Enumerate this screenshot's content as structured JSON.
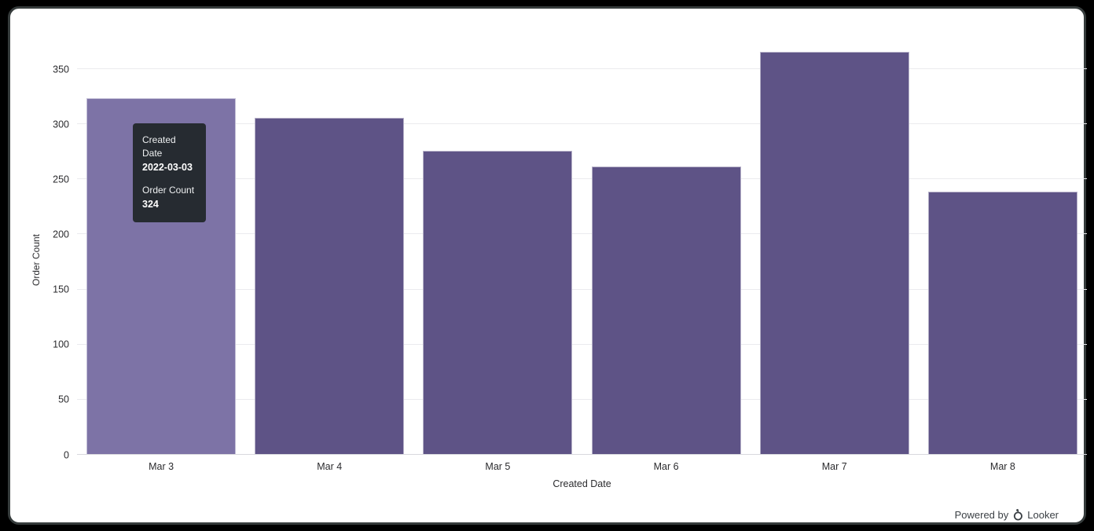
{
  "window": {
    "background": "#000000",
    "card_background": "#ffffff",
    "card_border_color": "#363c3c"
  },
  "chart_data": {
    "type": "bar",
    "title": "",
    "categories": [
      "Mar 3",
      "Mar 4",
      "Mar 5",
      "Mar 6",
      "Mar 7",
      "Mar 8"
    ],
    "values": [
      324,
      306,
      276,
      262,
      366,
      239
    ],
    "xlabel": "Created Date",
    "ylabel": "Order Count",
    "ylim": [
      0,
      390
    ],
    "yticks": [
      0,
      50,
      100,
      150,
      200,
      250,
      300,
      350
    ],
    "grid": true,
    "legend": "none",
    "bar_color": "#5e5386",
    "bar_hover_color": "#7d73a6",
    "hovered_index": 0,
    "gridline_color": "#ebebee",
    "axis_line_color": "#d9d9de"
  },
  "tooltip": {
    "x_label": "Created Date",
    "x_value": "2022-03-03",
    "y_label": "Order Count",
    "y_value": "324",
    "background": "#262b31"
  },
  "footer": {
    "powered_by": "Powered by",
    "brand": "Looker"
  }
}
